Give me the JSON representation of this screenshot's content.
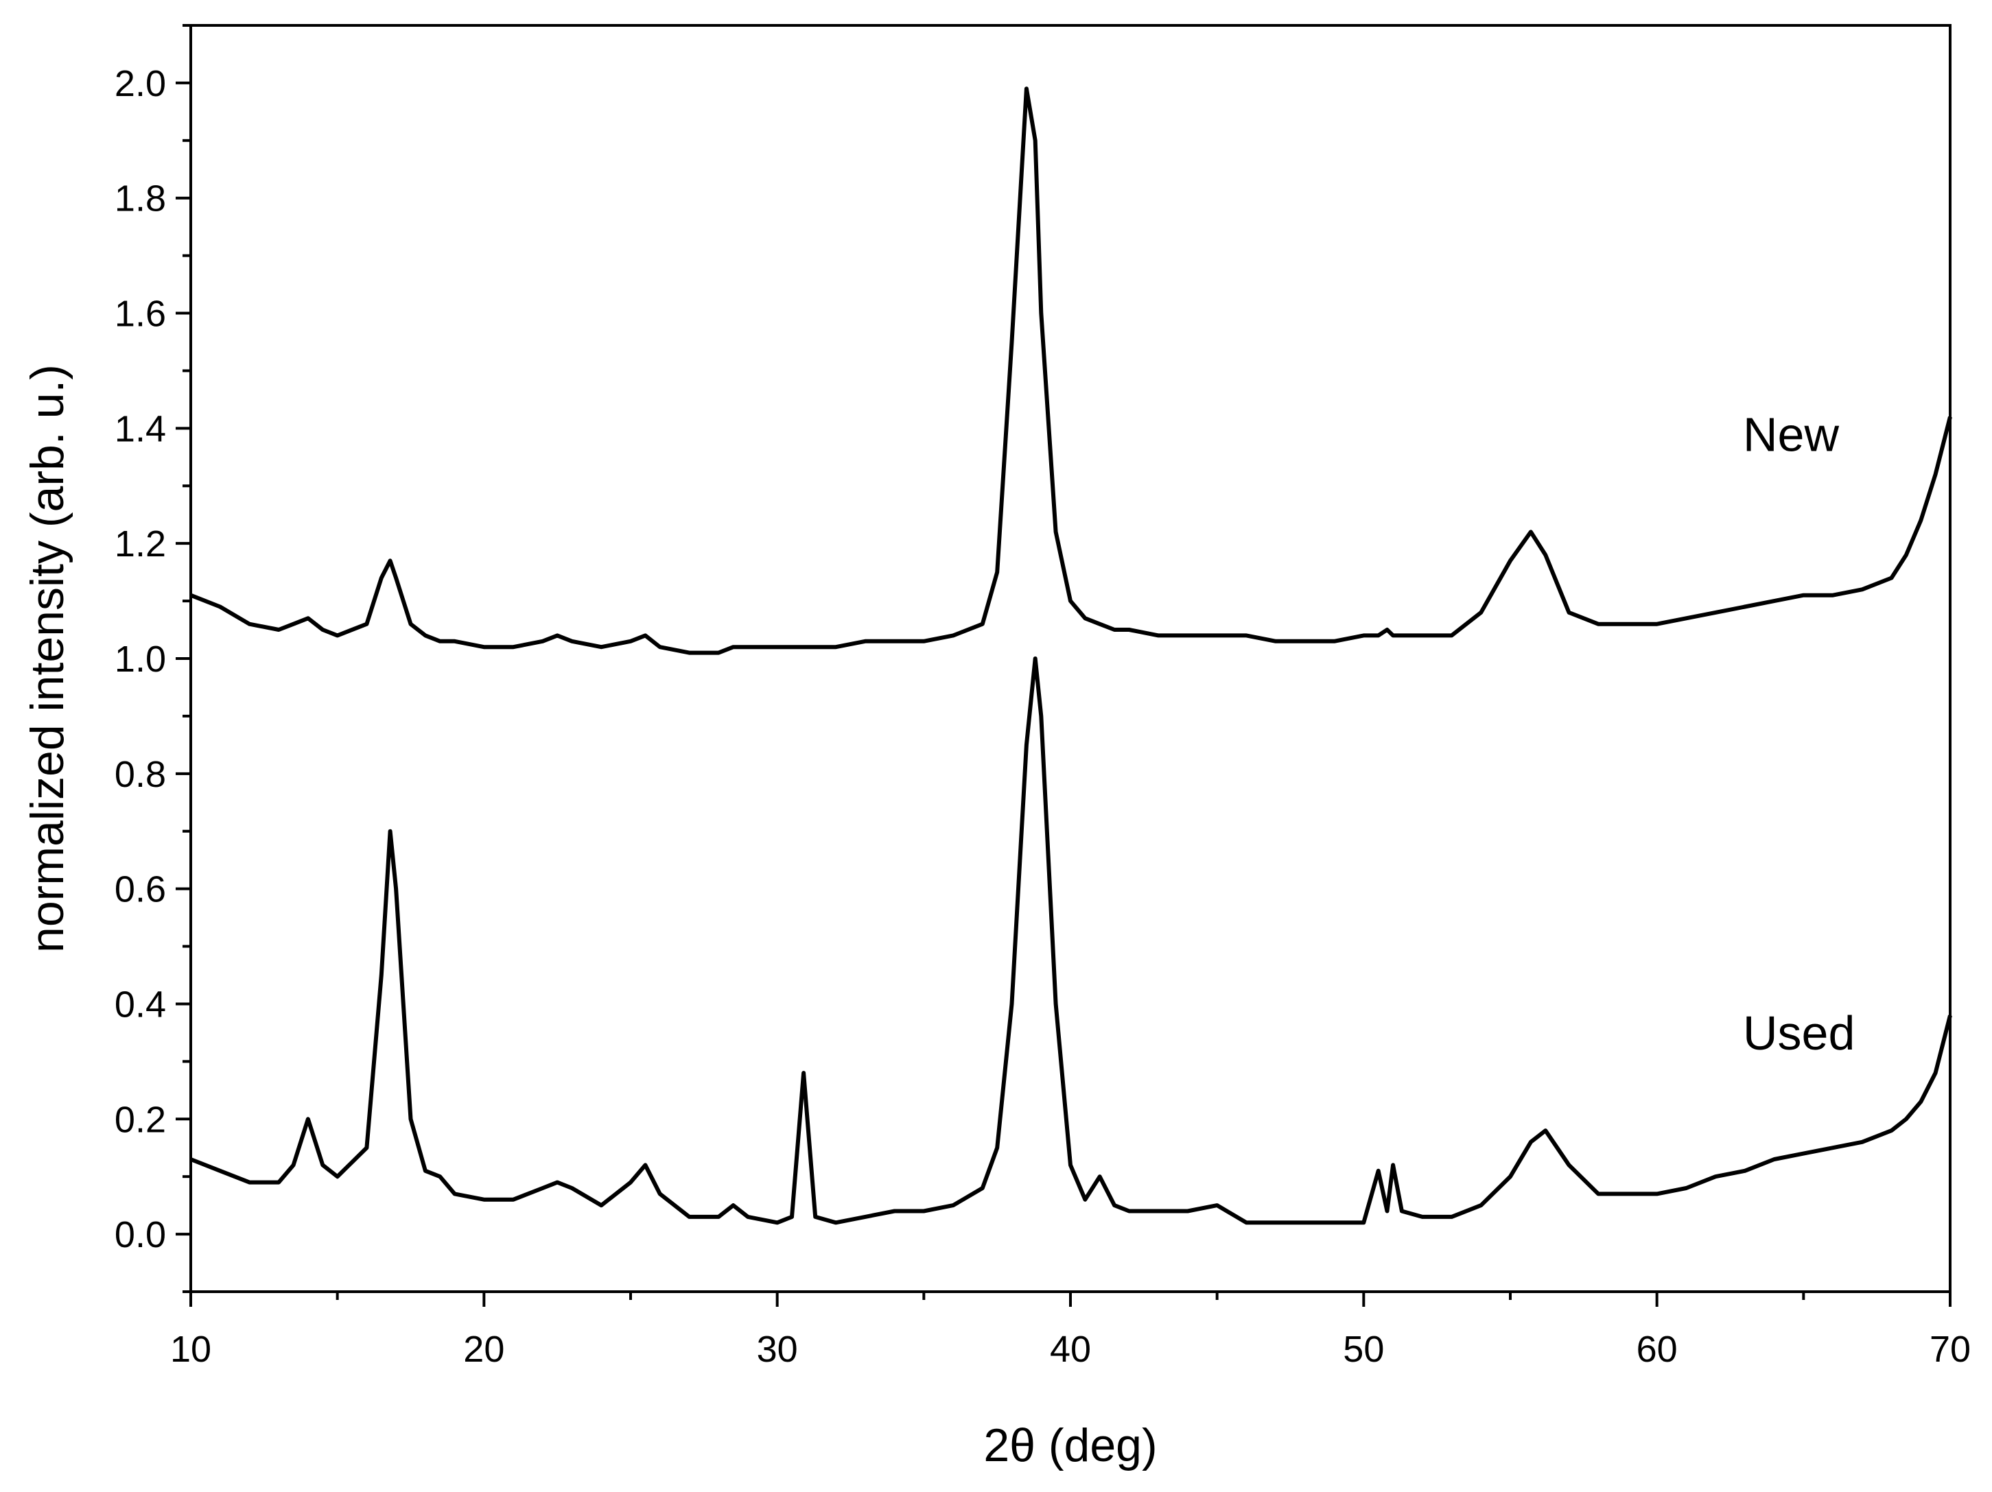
{
  "chart_data": {
    "type": "line",
    "x_label": "2θ (deg)",
    "y_label": "normalized intensity (arb. u.)",
    "x": [
      10,
      11,
      12,
      13,
      13.5,
      14,
      14.5,
      15,
      16,
      16.5,
      16.8,
      17,
      17.5,
      18,
      18.5,
      19,
      20,
      21,
      22,
      22.5,
      23,
      24,
      25,
      25.5,
      26,
      27,
      28,
      28.5,
      29,
      30,
      30.5,
      30.9,
      31.3,
      32,
      33,
      34,
      35,
      36,
      37,
      37.5,
      38,
      38.5,
      38.8,
      39,
      39.5,
      40,
      40.5,
      41,
      41.5,
      42,
      43,
      44,
      45,
      46,
      47,
      48,
      49,
      50,
      50.5,
      50.8,
      51,
      51.3,
      52,
      53,
      54,
      55,
      55.7,
      56.2,
      57,
      58,
      59,
      60,
      61,
      62,
      63,
      64,
      65,
      66,
      67,
      68,
      68.5,
      69,
      69.5,
      70
    ],
    "series": [
      {
        "name": "New",
        "color": "#000000",
        "values": [
          1.11,
          1.09,
          1.06,
          1.05,
          1.06,
          1.07,
          1.05,
          1.04,
          1.06,
          1.14,
          1.17,
          1.14,
          1.06,
          1.04,
          1.03,
          1.03,
          1.02,
          1.02,
          1.03,
          1.04,
          1.03,
          1.02,
          1.03,
          1.04,
          1.02,
          1.01,
          1.01,
          1.02,
          1.02,
          1.02,
          1.02,
          1.02,
          1.02,
          1.02,
          1.03,
          1.03,
          1.03,
          1.04,
          1.06,
          1.15,
          1.55,
          1.99,
          1.9,
          1.6,
          1.22,
          1.1,
          1.07,
          1.06,
          1.05,
          1.05,
          1.04,
          1.04,
          1.04,
          1.04,
          1.03,
          1.03,
          1.03,
          1.04,
          1.04,
          1.05,
          1.04,
          1.04,
          1.04,
          1.04,
          1.08,
          1.17,
          1.22,
          1.18,
          1.08,
          1.06,
          1.06,
          1.06,
          1.07,
          1.08,
          1.09,
          1.1,
          1.11,
          1.11,
          1.12,
          1.14,
          1.18,
          1.24,
          1.32,
          1.42
        ]
      },
      {
        "name": "Used",
        "color": "#000000",
        "values": [
          0.13,
          0.11,
          0.09,
          0.09,
          0.12,
          0.2,
          0.12,
          0.1,
          0.15,
          0.45,
          0.7,
          0.6,
          0.2,
          0.11,
          0.1,
          0.07,
          0.06,
          0.06,
          0.08,
          0.09,
          0.08,
          0.05,
          0.09,
          0.12,
          0.07,
          0.03,
          0.03,
          0.05,
          0.03,
          0.02,
          0.03,
          0.28,
          0.03,
          0.02,
          0.03,
          0.04,
          0.04,
          0.05,
          0.08,
          0.15,
          0.4,
          0.85,
          1.0,
          0.9,
          0.4,
          0.12,
          0.06,
          0.1,
          0.05,
          0.04,
          0.04,
          0.04,
          0.05,
          0.02,
          0.02,
          0.02,
          0.02,
          0.02,
          0.11,
          0.04,
          0.12,
          0.04,
          0.03,
          0.03,
          0.05,
          0.1,
          0.16,
          0.18,
          0.12,
          0.07,
          0.07,
          0.07,
          0.08,
          0.1,
          0.11,
          0.13,
          0.14,
          0.15,
          0.16,
          0.18,
          0.2,
          0.23,
          0.28,
          0.38
        ]
      }
    ],
    "xlim": [
      10,
      70
    ],
    "xticks": [
      10,
      20,
      30,
      40,
      50,
      60,
      70
    ],
    "ylim": [
      -0.1,
      2.1
    ],
    "yticks": [
      {
        "value": 0,
        "label": "0.0"
      },
      0.2,
      0.4,
      0.6,
      0.8,
      {
        "value": 1,
        "label": "1.0"
      },
      1.2,
      1.4,
      1.6,
      1.8,
      {
        "value": 2,
        "label": "2.0"
      }
    ],
    "grid": false
  }
}
